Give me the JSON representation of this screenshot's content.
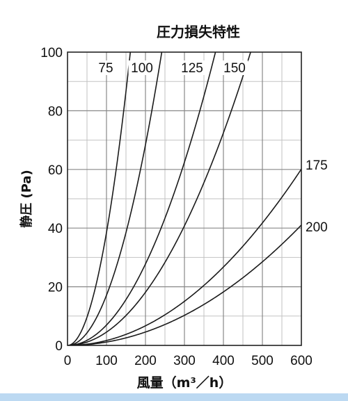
{
  "chart_data": {
    "type": "line",
    "title": "圧力損失特性",
    "xlabel": "風量（m³／h）",
    "ylabel": "静圧 (Pa)",
    "xlim": [
      0,
      600
    ],
    "ylim": [
      0,
      100
    ],
    "x_ticks": [
      0,
      100,
      200,
      300,
      400,
      500,
      600
    ],
    "y_ticks": [
      0,
      20,
      40,
      60,
      80,
      100
    ],
    "grid": true,
    "series": [
      {
        "name": "75",
        "k": 0.00385,
        "x": [
          0,
          40,
          60,
          80,
          100,
          120,
          140,
          150,
          160
        ],
        "y": [
          0,
          6,
          14,
          25,
          38,
          55,
          75,
          86,
          98
        ]
      },
      {
        "name": "100",
        "k": 0.00171,
        "x": [
          0,
          60,
          100,
          140,
          180,
          210,
          240
        ],
        "y": [
          0,
          6,
          17,
          33,
          55,
          75,
          98
        ]
      },
      {
        "name": "125",
        "k": 0.000694,
        "x": [
          0,
          100,
          150,
          200,
          250,
          300,
          350,
          380
        ],
        "y": [
          0,
          7,
          16,
          28,
          43,
          62,
          85,
          100
        ]
      },
      {
        "name": "150",
        "k": 0.000453,
        "x": [
          0,
          100,
          200,
          250,
          300,
          350,
          400,
          440,
          470
        ],
        "y": [
          0,
          5,
          18,
          28,
          41,
          55,
          72,
          88,
          100
        ]
      },
      {
        "name": "175",
        "k": 0.000167,
        "x": [
          0,
          100,
          200,
          300,
          400,
          500,
          600
        ],
        "y": [
          0,
          2,
          7,
          15,
          27,
          42,
          60
        ]
      },
      {
        "name": "200",
        "k": 0.000114,
        "x": [
          0,
          100,
          200,
          300,
          400,
          500,
          600
        ],
        "y": [
          0,
          1,
          5,
          10,
          18,
          29,
          41
        ]
      }
    ],
    "series_labels": [
      "75",
      "100",
      "125",
      "150",
      "175",
      "200"
    ]
  }
}
